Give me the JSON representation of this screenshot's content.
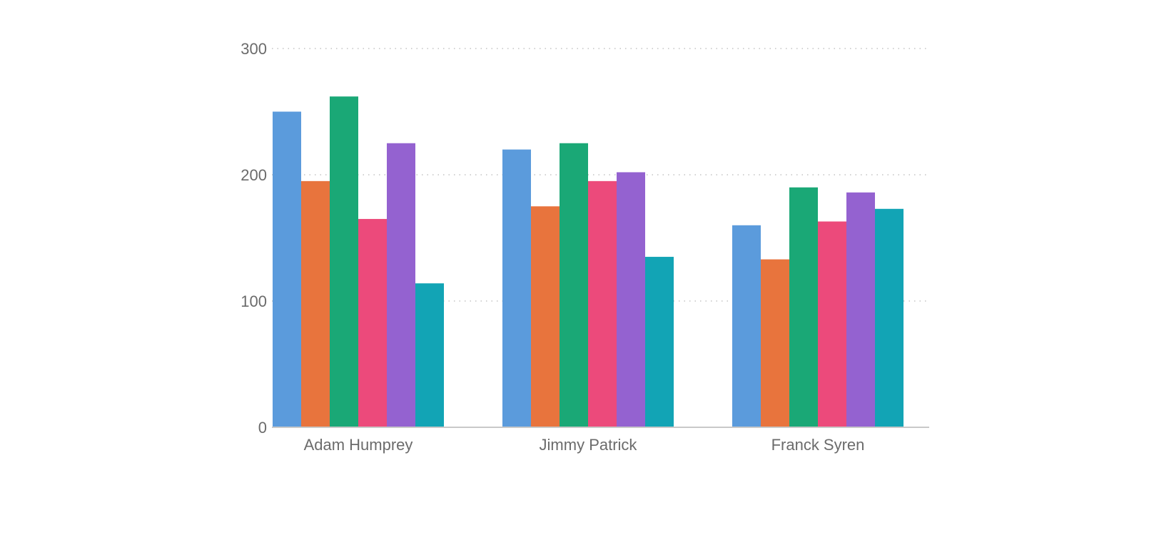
{
  "chart_data": {
    "type": "bar",
    "title": "",
    "xlabel": "",
    "ylabel": "",
    "categories": [
      "Adam Humprey",
      "Jimmy Patrick",
      "Franck Syren"
    ],
    "y_ticks": [
      0,
      100,
      200,
      300
    ],
    "ylim": [
      0,
      300
    ],
    "grid": true,
    "legend": "none",
    "series": [
      {
        "color": "#5b9bdc",
        "values": [
          250,
          220,
          160
        ]
      },
      {
        "color": "#e8743d",
        "values": [
          195,
          175,
          133
        ]
      },
      {
        "color": "#1aa876",
        "values": [
          262,
          225,
          190
        ]
      },
      {
        "color": "#ec4a7b",
        "values": [
          165,
          195,
          163
        ]
      },
      {
        "color": "#9462d0",
        "values": [
          225,
          202,
          186
        ]
      },
      {
        "color": "#12a4b5",
        "values": [
          114,
          135,
          173
        ]
      }
    ]
  }
}
